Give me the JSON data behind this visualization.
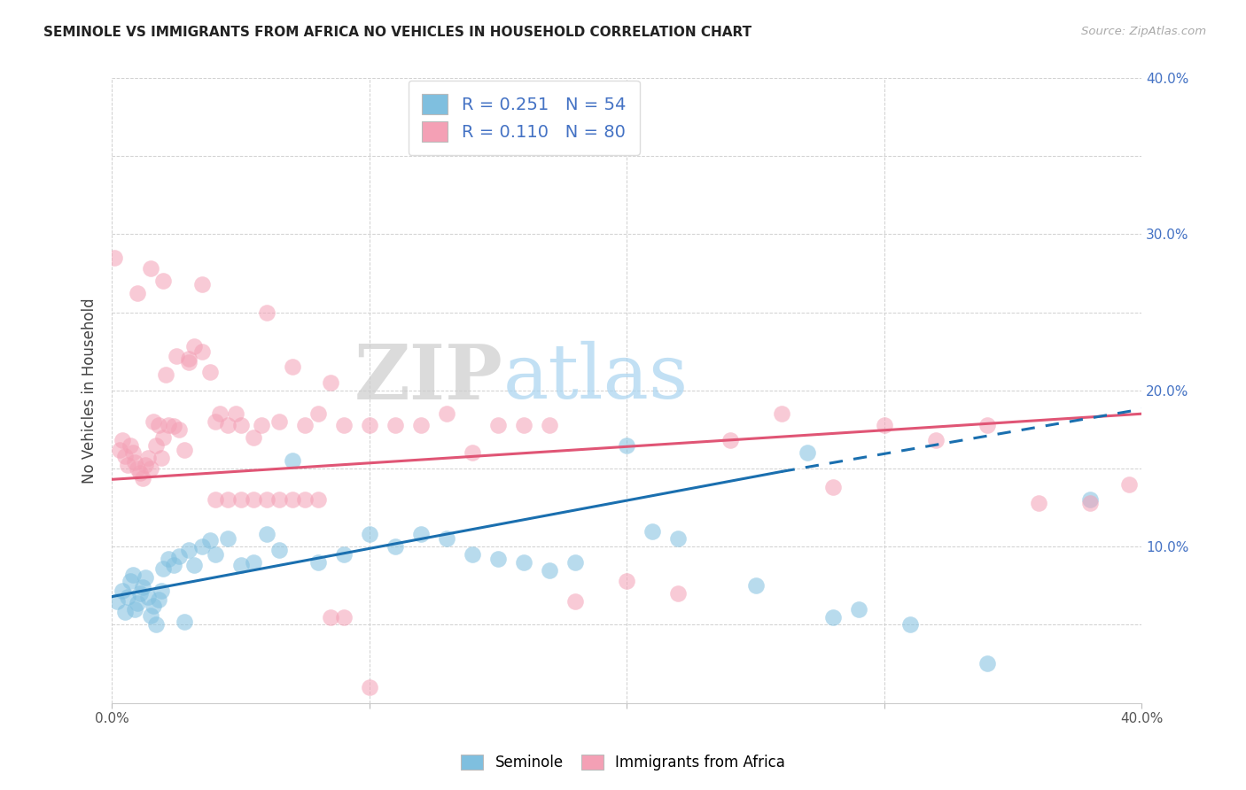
{
  "title": "SEMINOLE VS IMMIGRANTS FROM AFRICA NO VEHICLES IN HOUSEHOLD CORRELATION CHART",
  "source": "Source: ZipAtlas.com",
  "ylabel": "No Vehicles in Household",
  "xlim": [
    0.0,
    0.4
  ],
  "ylim": [
    0.0,
    0.4
  ],
  "seminole_color": "#7fbfdf",
  "africa_color": "#f4a0b5",
  "seminole_line_color": "#1a6faf",
  "africa_line_color": "#e05575",
  "legend_R_seminole": "0.251",
  "legend_N_seminole": "54",
  "legend_R_africa": "0.110",
  "legend_N_africa": "80",
  "watermark_zip": "ZIP",
  "watermark_atlas": "atlas",
  "right_ytick_labels": [
    "",
    "",
    "10.0%",
    "",
    "20.0%",
    "",
    "30.0%",
    "",
    "40.0%"
  ],
  "xtick_labels": [
    "0.0%",
    "",
    "",
    "",
    "40.0%"
  ],
  "bottom_legend_labels": [
    "Seminole",
    "Immigrants from Africa"
  ],
  "seminole_x": [
    0.002,
    0.004,
    0.005,
    0.006,
    0.007,
    0.008,
    0.009,
    0.01,
    0.011,
    0.012,
    0.013,
    0.014,
    0.015,
    0.016,
    0.017,
    0.018,
    0.019,
    0.02,
    0.022,
    0.024,
    0.026,
    0.028,
    0.03,
    0.032,
    0.035,
    0.038,
    0.04,
    0.045,
    0.05,
    0.055,
    0.06,
    0.065,
    0.07,
    0.08,
    0.09,
    0.1,
    0.11,
    0.12,
    0.13,
    0.14,
    0.15,
    0.16,
    0.17,
    0.18,
    0.2,
    0.21,
    0.22,
    0.25,
    0.27,
    0.28,
    0.29,
    0.31,
    0.34,
    0.38
  ],
  "seminole_y": [
    0.065,
    0.072,
    0.058,
    0.068,
    0.078,
    0.082,
    0.06,
    0.064,
    0.07,
    0.074,
    0.08,
    0.068,
    0.056,
    0.062,
    0.05,
    0.066,
    0.072,
    0.086,
    0.092,
    0.088,
    0.094,
    0.052,
    0.098,
    0.088,
    0.1,
    0.104,
    0.095,
    0.105,
    0.088,
    0.09,
    0.108,
    0.098,
    0.155,
    0.09,
    0.095,
    0.108,
    0.1,
    0.108,
    0.105,
    0.095,
    0.092,
    0.09,
    0.085,
    0.09,
    0.165,
    0.11,
    0.105,
    0.075,
    0.16,
    0.055,
    0.06,
    0.05,
    0.025,
    0.13
  ],
  "africa_x": [
    0.001,
    0.003,
    0.004,
    0.005,
    0.006,
    0.007,
    0.008,
    0.009,
    0.01,
    0.011,
    0.012,
    0.013,
    0.014,
    0.015,
    0.016,
    0.017,
    0.018,
    0.019,
    0.02,
    0.021,
    0.022,
    0.024,
    0.026,
    0.028,
    0.03,
    0.032,
    0.035,
    0.038,
    0.04,
    0.042,
    0.045,
    0.048,
    0.05,
    0.055,
    0.058,
    0.06,
    0.065,
    0.07,
    0.075,
    0.08,
    0.085,
    0.09,
    0.1,
    0.11,
    0.12,
    0.13,
    0.14,
    0.15,
    0.16,
    0.17,
    0.18,
    0.2,
    0.22,
    0.24,
    0.26,
    0.28,
    0.3,
    0.32,
    0.34,
    0.36,
    0.38,
    0.395,
    0.01,
    0.015,
    0.02,
    0.025,
    0.03,
    0.035,
    0.04,
    0.045,
    0.05,
    0.055,
    0.06,
    0.065,
    0.07,
    0.075,
    0.08,
    0.085,
    0.09,
    0.1
  ],
  "africa_y": [
    0.285,
    0.162,
    0.168,
    0.158,
    0.152,
    0.165,
    0.16,
    0.154,
    0.15,
    0.147,
    0.144,
    0.152,
    0.157,
    0.15,
    0.18,
    0.165,
    0.178,
    0.157,
    0.17,
    0.21,
    0.178,
    0.177,
    0.175,
    0.162,
    0.22,
    0.228,
    0.225,
    0.212,
    0.18,
    0.185,
    0.178,
    0.185,
    0.178,
    0.17,
    0.178,
    0.25,
    0.18,
    0.215,
    0.178,
    0.185,
    0.205,
    0.178,
    0.178,
    0.178,
    0.178,
    0.185,
    0.16,
    0.178,
    0.178,
    0.178,
    0.065,
    0.078,
    0.07,
    0.168,
    0.185,
    0.138,
    0.178,
    0.168,
    0.178,
    0.128,
    0.128,
    0.14,
    0.262,
    0.278,
    0.27,
    0.222,
    0.218,
    0.268,
    0.13,
    0.13,
    0.13,
    0.13,
    0.13,
    0.13,
    0.13,
    0.13,
    0.13,
    0.055,
    0.055,
    0.01
  ],
  "sem_line_x0": 0.0,
  "sem_line_y0": 0.068,
  "sem_line_x1": 0.26,
  "sem_line_y1": 0.148,
  "sem_line_dash_x0": 0.26,
  "sem_line_dash_y0": 0.148,
  "sem_line_dash_x1": 0.4,
  "sem_line_dash_y1": 0.188,
  "afr_line_x0": 0.0,
  "afr_line_y0": 0.143,
  "afr_line_x1": 0.4,
  "afr_line_y1": 0.185
}
